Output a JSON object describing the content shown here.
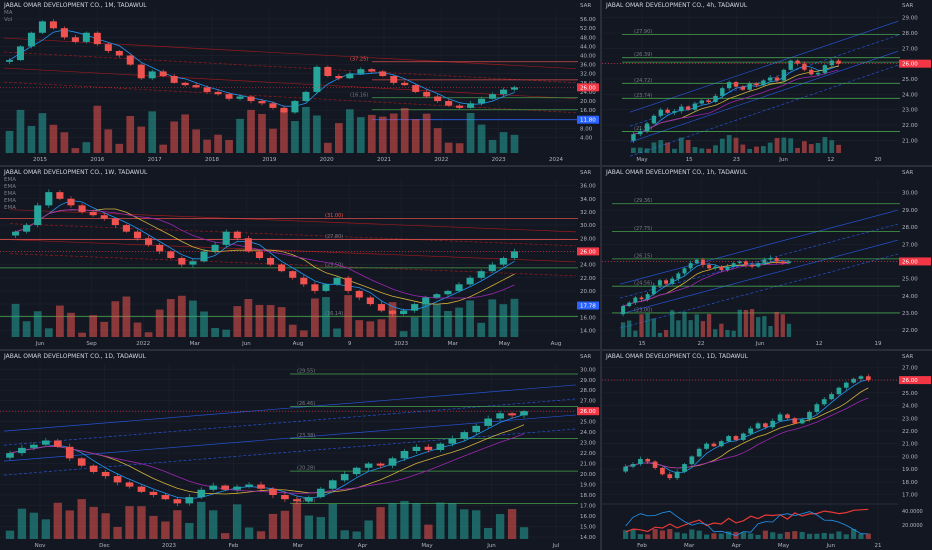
{
  "colors": {
    "up": "#26a69a",
    "down": "#ef5350",
    "price_tag": "#f23645",
    "fib_green": "#4caf50",
    "fib_orange": "#ff9800",
    "fib_gray": "#787b86",
    "channel": "#2962ff",
    "ma_blue": "#2196f3",
    "ma_yellow": "#d4b13a",
    "ma_purple": "#9c27b0",
    "ma_red": "#e53935",
    "background": "#131722",
    "grid": "#1e222d"
  },
  "panels": [
    {
      "id": "p1",
      "title": "JABAL OMAR DEVELOPMENT CO., 1M, TADAWUL",
      "legend": [
        "MA",
        "Vol"
      ],
      "currency": "SAR",
      "x_ticks": [
        "2015",
        "2016",
        "2017",
        "2018",
        "2019",
        "2020",
        "2021",
        "2022",
        "2023",
        "2024"
      ],
      "y_ticks": [
        "4.00",
        "8.00",
        "12.00",
        "16.00",
        "20.00",
        "24.00",
        "28.00",
        "32.00",
        "36.00",
        "40.00",
        "44.00",
        "48.00",
        "52.00",
        "56.00"
      ],
      "level_labels": [
        "(37.25)",
        "(21.44)",
        "(16.16)"
      ],
      "price_tags": [
        "26.00",
        "11.80"
      ],
      "chart_data": {
        "type": "candlestick",
        "y_range": [
          2,
          60
        ],
        "last_price": 26.0,
        "levels": [
          37.25,
          29.3,
          21.44,
          16.16,
          11.8
        ],
        "close_series": [
          38,
          44,
          50,
          55,
          52,
          48,
          46,
          50,
          45,
          42,
          40,
          36,
          30,
          33,
          31,
          28,
          27,
          26,
          24,
          23,
          21,
          22,
          20,
          19,
          17,
          15,
          20,
          24,
          35,
          31,
          30,
          32,
          34,
          33,
          31,
          28,
          27,
          24,
          22,
          20,
          18,
          17,
          19,
          21,
          23,
          25,
          26
        ]
      }
    },
    {
      "id": "p2",
      "title": "JABAL OMAR DEVELOPMENT CO., 4h, TADAWUL",
      "legend": [],
      "currency": "SAR",
      "x_ticks": [
        "May",
        "15",
        "23",
        "Jun",
        "12",
        "20"
      ],
      "y_ticks": [
        "21.00",
        "22.00",
        "23.00",
        "24.00",
        "25.00",
        "26.00",
        "27.00",
        "28.00",
        "29.00"
      ],
      "level_labels": [
        "(27.90)",
        "(26.39)",
        "(24.72)",
        "(23.74)",
        "(21.58)"
      ],
      "price_tags": [
        "26.00"
      ],
      "chart_data": {
        "type": "candlestick",
        "y_range": [
          20.5,
          29.5
        ],
        "last_price": 26.0,
        "levels": [
          27.9,
          26.39,
          26.1,
          24.72,
          23.74,
          21.58
        ],
        "close_series": [
          21.4,
          21.6,
          22.1,
          22.6,
          23.0,
          22.8,
          22.9,
          23.2,
          23.0,
          23.4,
          23.6,
          23.5,
          23.9,
          24.4,
          24.8,
          24.5,
          24.3,
          24.7,
          24.6,
          24.9,
          25.1,
          24.9,
          25.6,
          26.2,
          26.0,
          25.6,
          25.3,
          25.4,
          25.9,
          26.2,
          26.0
        ]
      }
    },
    {
      "id": "p3",
      "title": "JABAL OMAR DEVELOPMENT CO., 1W, TADAWUL",
      "legend": [
        "EMA",
        "EMA",
        "EMA",
        "EMA",
        "EMA"
      ],
      "currency": "SAR",
      "x_ticks": [
        "Jun",
        "Sep",
        "2022",
        "Mar",
        "Jun",
        "Aug",
        "9",
        "2023",
        "Mar",
        "May",
        "Aug"
      ],
      "y_ticks": [
        "14.00",
        "16.00",
        "18.00",
        "20.00",
        "22.00",
        "24.00",
        "26.00",
        "28.00",
        "30.00",
        "32.00",
        "34.00",
        "36.00"
      ],
      "level_labels": [
        "(31.00)",
        "(27.80)",
        "(23.50)",
        "(16.14)"
      ],
      "price_tags": [
        "26.00",
        "17.78"
      ],
      "chart_data": {
        "type": "candlestick",
        "y_range": [
          13,
          37
        ],
        "last_price": 26.0,
        "levels": [
          31.0,
          27.8,
          23.5,
          16.14
        ],
        "close_series": [
          29,
          30,
          33,
          35,
          34,
          33,
          32,
          31.5,
          31,
          30,
          29,
          28,
          27,
          26,
          25,
          24,
          24.5,
          26,
          27,
          29,
          28,
          26,
          25,
          24,
          23,
          22,
          21,
          20,
          21,
          22,
          20,
          19,
          18,
          17,
          16.5,
          17,
          18,
          19,
          19.5,
          20,
          21,
          22,
          23,
          24,
          25,
          26
        ]
      }
    },
    {
      "id": "p4",
      "title": "JABAL OMAR DEVELOPMENT CO., 1h, TADAWUL",
      "legend": [],
      "currency": "SAR",
      "x_ticks": [
        "15",
        "22",
        "Jun",
        "12",
        "19"
      ],
      "y_ticks": [
        "22.00",
        "23.00",
        "24.00",
        "25.00",
        "26.00",
        "27.00",
        "28.00",
        "29.00",
        "30.00"
      ],
      "level_labels": [
        "(29.36)",
        "(27.75)",
        "(26.15)",
        "(24.56)",
        "(23.00)"
      ],
      "price_tags": [
        "26.00"
      ],
      "chart_data": {
        "type": "candlestick",
        "y_range": [
          21.6,
          30.8
        ],
        "last_price": 26.0,
        "levels": [
          29.36,
          27.75,
          26.15,
          24.56,
          23.0
        ],
        "close_series": [
          23.4,
          23.6,
          23.9,
          23.8,
          24.1,
          24.6,
          24.9,
          24.7,
          25.0,
          25.3,
          25.6,
          25.9,
          26.1,
          25.8,
          25.6,
          25.7,
          25.5,
          25.7,
          25.9,
          26.0,
          25.8,
          25.7,
          25.9,
          26.1,
          26.2,
          26.0,
          25.9,
          26.0
        ]
      }
    },
    {
      "id": "p5",
      "title": "JABAL OMAR DEVELOPMENT CO., 1D, TADAWUL",
      "legend": [],
      "currency": "SAR",
      "x_ticks": [
        "Nov",
        "Dec",
        "2023",
        "Feb",
        "Mar",
        "Apr",
        "May",
        "Jun",
        "Jul"
      ],
      "y_ticks": [
        "14.00",
        "15.00",
        "16.00",
        "17.00",
        "18.00",
        "19.00",
        "20.00",
        "21.00",
        "22.00",
        "23.00",
        "24.00",
        "25.00",
        "26.00",
        "27.00",
        "28.00",
        "29.00",
        "30.00"
      ],
      "level_labels": [
        "(29.55)",
        "(26.46)",
        "(23.38)",
        "(20.28)",
        "(17.19)"
      ],
      "price_tags": [
        "26.00"
      ],
      "chart_data": {
        "type": "candlestick",
        "y_range": [
          13.8,
          30.6
        ],
        "last_price": 26.0,
        "levels": [
          29.55,
          26.46,
          23.38,
          20.28,
          17.19
        ],
        "close_series": [
          22.0,
          22.5,
          22.8,
          23.2,
          22.6,
          21.5,
          20.8,
          20.2,
          19.8,
          19.2,
          18.8,
          18.3,
          18.0,
          17.6,
          17.2,
          17.8,
          18.5,
          18.9,
          18.5,
          18.8,
          19.0,
          18.6,
          18.0,
          17.6,
          17.4,
          17.8,
          18.6,
          19.4,
          20.0,
          20.6,
          21.0,
          20.8,
          21.5,
          22.2,
          22.6,
          22.3,
          22.9,
          23.4,
          24.0,
          24.6,
          25.3,
          25.8,
          25.6,
          26.0
        ]
      }
    },
    {
      "id": "p6",
      "title": "JABAL OMAR DEVELOPMENT CO., 1D, TADAWUL",
      "legend": [],
      "currency": "SAR",
      "x_ticks": [
        "Feb",
        "Mar",
        "Apr",
        "May",
        "Jun",
        "21"
      ],
      "y_ticks": [
        "17.00",
        "18.00",
        "19.00",
        "20.00",
        "21.00",
        "22.00",
        "23.00",
        "24.00",
        "25.00",
        "26.00",
        "27.00"
      ],
      "osc_ticks": [
        "40.0000",
        "20.0000"
      ],
      "level_labels": [],
      "price_tags": [
        "26.00"
      ],
      "chart_data": {
        "type": "candlestick",
        "y_range": [
          16.5,
          27.5
        ],
        "last_price": 26.0,
        "close_series": [
          19.2,
          19.4,
          19.8,
          19.6,
          19.1,
          18.6,
          18.3,
          18.8,
          19.4,
          20.0,
          20.6,
          21.0,
          20.8,
          21.2,
          21.6,
          21.3,
          21.8,
          22.2,
          22.6,
          22.3,
          22.8,
          23.3,
          23.0,
          22.6,
          22.9,
          23.5,
          24.1,
          24.5,
          24.9,
          25.4,
          25.8,
          26.1,
          26.3,
          26.0
        ]
      }
    }
  ]
}
